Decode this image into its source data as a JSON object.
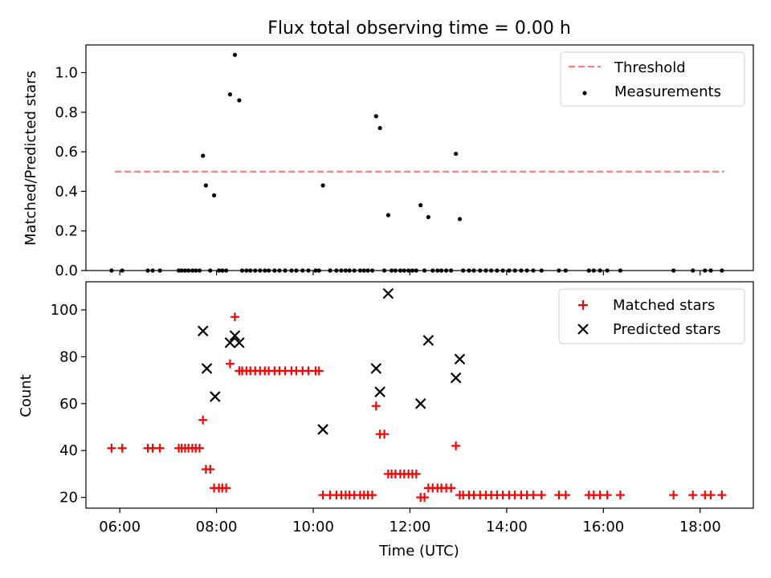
{
  "chart_data": [
    {
      "type": "scatter",
      "title": "Flux total observing time = 0.00 h",
      "xlabel": "",
      "ylabel": "Matched/Predicted stars",
      "xlim": [
        5.3,
        19.1
      ],
      "ylim": [
        0,
        1.14
      ],
      "x_unit": "hours (UTC)",
      "xticks": [
        6,
        8,
        10,
        12,
        14,
        16,
        18
      ],
      "xtick_labels_visible": false,
      "yticks": [
        0.0,
        0.2,
        0.4,
        0.6,
        0.8,
        1.0
      ],
      "ytick_labels": [
        "0.0",
        "0.2",
        "0.4",
        "0.6",
        "0.8",
        "1.0"
      ],
      "grid": false,
      "legend_position": "top-right",
      "legend": [
        "Threshold",
        "Measurements"
      ],
      "colors": {
        "threshold": "#ff7f7f",
        "measurements": "#000000"
      },
      "threshold": {
        "name": "Threshold",
        "y": 0.5,
        "x": [
          5.9,
          18.5
        ],
        "style": "dashed"
      },
      "series": [
        {
          "name": "Measurements",
          "x": [
            5.83,
            6.05,
            6.58,
            6.68,
            6.83,
            7.22,
            7.28,
            7.35,
            7.42,
            7.5,
            7.57,
            7.65,
            7.72,
            7.78,
            7.87,
            7.95,
            8.05,
            8.12,
            8.2,
            8.28,
            8.38,
            8.47,
            8.53,
            8.62,
            8.7,
            8.8,
            8.9,
            9.0,
            9.08,
            9.2,
            9.3,
            9.42,
            9.55,
            9.65,
            9.78,
            9.9,
            10.05,
            10.12,
            10.2,
            10.35,
            10.48,
            10.58,
            10.67,
            10.75,
            10.85,
            10.97,
            11.05,
            11.13,
            11.22,
            11.3,
            11.38,
            11.47,
            11.55,
            11.62,
            11.7,
            11.8,
            11.88,
            11.97,
            12.05,
            12.13,
            12.22,
            12.3,
            12.38,
            12.47,
            12.57,
            12.65,
            12.75,
            12.85,
            12.95,
            13.03,
            13.1,
            13.22,
            13.32,
            13.45,
            13.57,
            13.68,
            13.8,
            13.92,
            14.05,
            14.17,
            14.3,
            14.42,
            14.55,
            14.72,
            15.08,
            15.22,
            15.7,
            15.8,
            15.93,
            16.08,
            16.35,
            17.45,
            17.85,
            18.1,
            18.22,
            18.45
          ],
          "y": [
            0,
            0,
            0,
            0,
            0,
            0,
            0,
            0,
            0,
            0,
            0,
            0,
            0.58,
            0.43,
            0,
            0.38,
            0,
            0,
            0,
            0.89,
            1.09,
            0.86,
            0,
            0,
            0,
            0,
            0,
            0,
            0,
            0,
            0,
            0,
            0,
            0,
            0,
            0,
            0,
            0,
            0.43,
            0,
            0,
            0,
            0,
            0,
            0,
            0,
            0,
            0,
            0,
            0.78,
            0.72,
            0,
            0.28,
            0,
            0,
            0,
            0,
            0,
            0,
            0,
            0.33,
            0,
            0.27,
            0,
            0,
            0,
            0,
            0,
            0.59,
            0.26,
            0,
            0,
            0,
            0,
            0,
            0,
            0,
            0,
            0,
            0,
            0,
            0,
            0,
            0,
            0,
            0,
            0,
            0,
            0,
            0,
            0,
            0,
            0,
            0,
            0,
            0
          ]
        }
      ]
    },
    {
      "type": "scatter",
      "title": "",
      "xlabel": "Time (UTC)",
      "ylabel": "Count",
      "xlim": [
        5.3,
        19.1
      ],
      "ylim": [
        15.4,
        112
      ],
      "x_unit": "hours (UTC)",
      "xticks": [
        6,
        8,
        10,
        12,
        14,
        16,
        18
      ],
      "xtick_labels": [
        "06:00",
        "08:00",
        "10:00",
        "12:00",
        "14:00",
        "16:00",
        "18:00"
      ],
      "yticks": [
        20,
        40,
        60,
        80,
        100
      ],
      "ytick_labels": [
        "20",
        "40",
        "60",
        "80",
        "100"
      ],
      "grid": false,
      "legend_position": "top-right",
      "legend": [
        "Matched stars",
        "Predicted stars"
      ],
      "colors": {
        "matched": "#ff0000",
        "predicted": "#000000"
      },
      "series": [
        {
          "name": "Matched stars",
          "marker": "plus",
          "x": [
            5.83,
            6.05,
            6.58,
            6.68,
            6.83,
            7.22,
            7.28,
            7.35,
            7.42,
            7.5,
            7.57,
            7.65,
            7.72,
            7.78,
            7.87,
            7.95,
            8.05,
            8.12,
            8.2,
            8.28,
            8.38,
            8.47,
            8.53,
            8.62,
            8.7,
            8.8,
            8.9,
            9.0,
            9.08,
            9.2,
            9.3,
            9.42,
            9.55,
            9.65,
            9.78,
            9.9,
            10.05,
            10.12,
            10.2,
            10.35,
            10.48,
            10.58,
            10.67,
            10.75,
            10.85,
            10.97,
            11.05,
            11.13,
            11.22,
            11.3,
            11.38,
            11.47,
            11.55,
            11.62,
            11.7,
            11.8,
            11.88,
            11.97,
            12.05,
            12.13,
            12.22,
            12.3,
            12.38,
            12.47,
            12.57,
            12.65,
            12.75,
            12.85,
            12.95,
            13.03,
            13.1,
            13.22,
            13.32,
            13.45,
            13.57,
            13.68,
            13.8,
            13.92,
            14.05,
            14.17,
            14.3,
            14.42,
            14.55,
            14.72,
            15.08,
            15.22,
            15.7,
            15.8,
            15.93,
            16.08,
            16.35,
            17.45,
            17.85,
            18.1,
            18.22,
            18.45
          ],
          "y": [
            41,
            41,
            41,
            41,
            41,
            41,
            41,
            41,
            41,
            41,
            41,
            41,
            53,
            32,
            32,
            24,
            24,
            24,
            24,
            77,
            97,
            74,
            74,
            74,
            74,
            74,
            74,
            74,
            74,
            74,
            74,
            74,
            74,
            74,
            74,
            74,
            74,
            74,
            21,
            21,
            21,
            21,
            21,
            21,
            21,
            21,
            21,
            21,
            21,
            59,
            47,
            47,
            30,
            30,
            30,
            30,
            30,
            30,
            30,
            30,
            20,
            20,
            24,
            24,
            24,
            24,
            24,
            24,
            42,
            21,
            21,
            21,
            21,
            21,
            21,
            21,
            21,
            21,
            21,
            21,
            21,
            21,
            21,
            21,
            21,
            21,
            21,
            21,
            21,
            21,
            21,
            21,
            21,
            21,
            21,
            21
          ]
        },
        {
          "name": "Predicted stars",
          "marker": "x",
          "x": [
            7.72,
            7.8,
            7.97,
            8.28,
            8.38,
            8.47,
            10.2,
            11.3,
            11.38,
            11.55,
            12.22,
            12.38,
            12.95,
            13.03
          ],
          "y": [
            91,
            75,
            63,
            86,
            89,
            86,
            49,
            75,
            65,
            107,
            60,
            87,
            71,
            79
          ]
        }
      ]
    }
  ]
}
